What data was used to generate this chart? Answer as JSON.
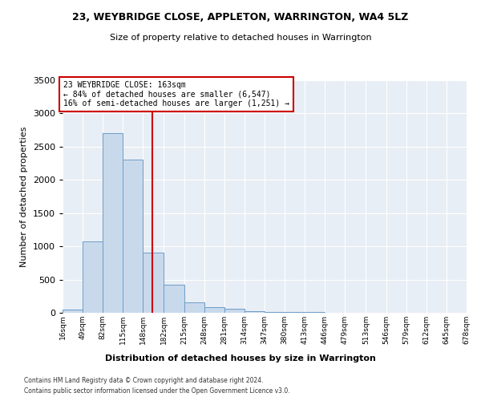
{
  "title": "23, WEYBRIDGE CLOSE, APPLETON, WARRINGTON, WA4 5LZ",
  "subtitle": "Size of property relative to detached houses in Warrington",
  "xlabel": "Distribution of detached houses by size in Warrington",
  "ylabel": "Number of detached properties",
  "annotation_title": "23 WEYBRIDGE CLOSE: 163sqm",
  "annotation_line1": "← 84% of detached houses are smaller (6,547)",
  "annotation_line2": "16% of semi-detached houses are larger (1,251) →",
  "property_size": 163,
  "bar_color": "#c9d9ec",
  "bar_edge_color": "#6b9dc8",
  "vline_color": "#cc0000",
  "annotation_box_color": "#cc0000",
  "background_color": "#e8eef5",
  "bin_starts": [
    16,
    49,
    82,
    115,
    148,
    182,
    215,
    248,
    281,
    314,
    347,
    380,
    413,
    446,
    479,
    513,
    546,
    579,
    612,
    645
  ],
  "bin_width": 33,
  "bar_heights": [
    50,
    1080,
    2700,
    2300,
    900,
    420,
    160,
    90,
    60,
    30,
    15,
    10,
    8,
    5,
    3,
    2,
    1,
    1,
    0,
    0
  ],
  "ylim": [
    0,
    3500
  ],
  "yticks": [
    0,
    500,
    1000,
    1500,
    2000,
    2500,
    3000,
    3500
  ],
  "footer_line1": "Contains HM Land Registry data © Crown copyright and database right 2024.",
  "footer_line2": "Contains public sector information licensed under the Open Government Licence v3.0."
}
